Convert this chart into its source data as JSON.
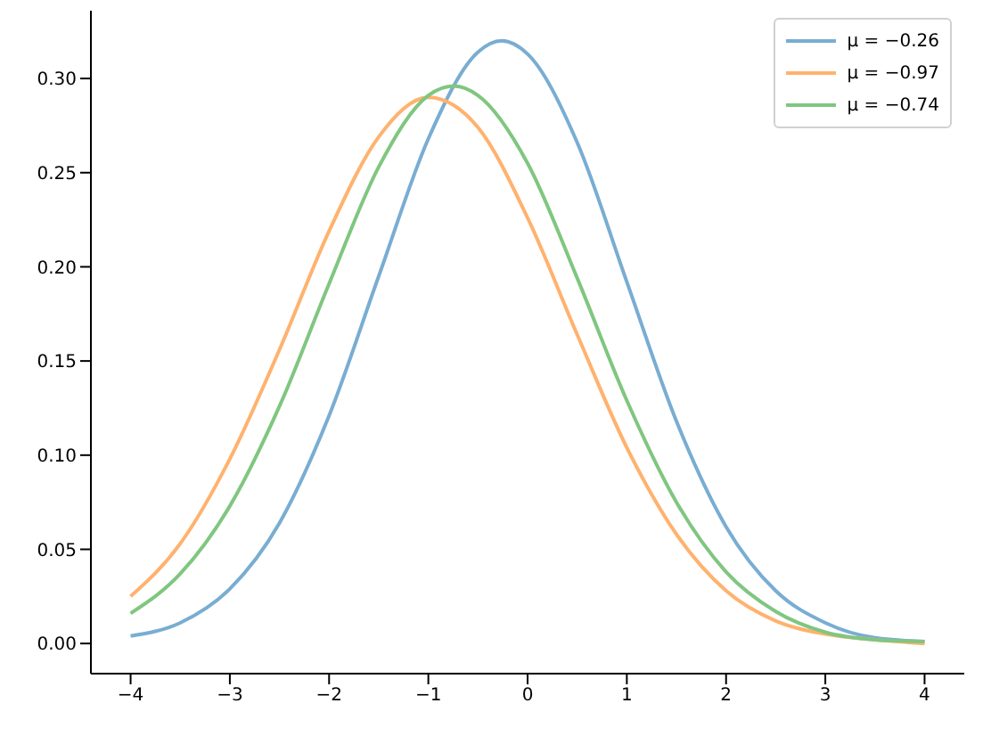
{
  "chart_data": {
    "type": "line",
    "xlim": [
      -4.4,
      4.4
    ],
    "xticks": [
      -4,
      -3,
      -2,
      -1,
      0,
      1,
      2,
      3,
      4
    ],
    "ylim": [
      -0.016,
      0.336
    ],
    "yticks": [
      {
        "value": 0,
        "label": "0.00"
      },
      {
        "value": 0.05,
        "label": "0.05"
      },
      {
        "value": 0.1,
        "label": "0.10"
      },
      {
        "value": 0.15,
        "label": "0.15"
      },
      {
        "value": 0.2,
        "label": "0.20"
      },
      {
        "value": 0.25,
        "label": "0.25"
      },
      {
        "value": 0.3,
        "label": "0.30"
      }
    ],
    "legend": "top right",
    "grid": false,
    "marker": "none",
    "line_style": "solid",
    "series": [
      {
        "name": "μ = −0.26",
        "color": "#79add2",
        "x": [
          -4,
          -3.5,
          -3,
          -2.5,
          -2,
          -1.5,
          -1,
          -0.5,
          -0.26,
          0,
          0.5,
          1,
          1.5,
          2,
          2.5,
          3,
          3.5,
          4
        ],
        "values": [
          0.004,
          0.011,
          0.029,
          0.064,
          0.121,
          0.195,
          0.268,
          0.314,
          0.32,
          0.313,
          0.266,
          0.192,
          0.118,
          0.062,
          0.028,
          0.011,
          0.003,
          0.001
        ]
      },
      {
        "name": "μ = −0.97",
        "color": "#ffb26e",
        "x": [
          -4,
          -3.5,
          -3,
          -2.5,
          -2,
          -1.5,
          -1,
          -0.5,
          0,
          0.5,
          1,
          1.5,
          2,
          2.5,
          3,
          3.5,
          4
        ],
        "values": [
          0.025,
          0.053,
          0.098,
          0.156,
          0.219,
          0.269,
          0.29,
          0.274,
          0.226,
          0.164,
          0.104,
          0.058,
          0.028,
          0.012,
          0.005,
          0.002,
          0.0
        ]
      },
      {
        "name": "μ = −0.74",
        "color": "#80c680",
        "x": [
          -4,
          -3.5,
          -3,
          -2.5,
          -2,
          -1.5,
          -1,
          -0.74,
          -0.5,
          0,
          0.5,
          1,
          1.5,
          2,
          2.5,
          3,
          3.5,
          4
        ],
        "values": [
          0.016,
          0.037,
          0.073,
          0.126,
          0.191,
          0.253,
          0.291,
          0.296,
          0.291,
          0.255,
          0.194,
          0.129,
          0.075,
          0.038,
          0.017,
          0.006,
          0.002,
          0.001
        ]
      }
    ]
  }
}
